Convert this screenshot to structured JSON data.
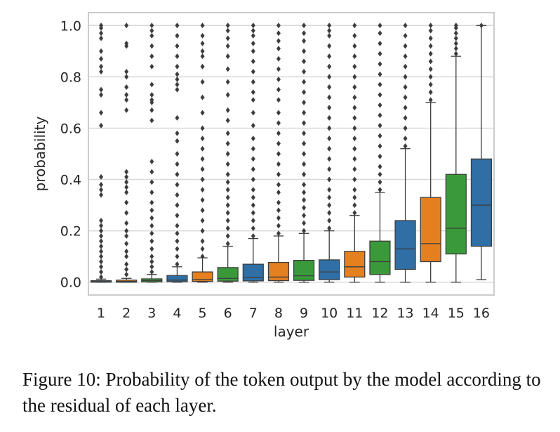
{
  "caption": "Figure 10: Probability of the token output by the model according to the residual of each layer.",
  "colors": {
    "blue": "#2f6fa6",
    "orange": "#e4801f",
    "green": "#3a9a3a",
    "grid": "#d9d9d9",
    "frame": "#cccccc",
    "line": "#3d3d3d",
    "outlier": "#3d3d3d"
  },
  "chart_data": {
    "type": "boxplot",
    "xlabel": "layer",
    "ylabel": "probability",
    "ylim": [
      -0.05,
      1.05
    ],
    "yticks": [
      0.0,
      0.2,
      0.4,
      0.6,
      0.8,
      1.0
    ],
    "ytick_labels": [
      "0.0",
      "0.2",
      "0.4",
      "0.6",
      "0.8",
      "1.0"
    ],
    "grid": true,
    "categories": [
      "1",
      "2",
      "3",
      "4",
      "5",
      "6",
      "7",
      "8",
      "9",
      "10",
      "11",
      "12",
      "13",
      "14",
      "15",
      "16"
    ],
    "series": [
      {
        "color": "blue",
        "min": 0.0,
        "q1": 0.0,
        "median": 0.002,
        "q3": 0.006,
        "max": 0.012,
        "outliers": [
          0.02,
          0.04,
          0.06,
          0.08,
          0.1,
          0.12,
          0.14,
          0.16,
          0.18,
          0.2,
          0.22,
          0.24,
          0.34,
          0.36,
          0.38,
          0.41,
          0.61,
          0.66,
          0.73,
          0.75,
          0.82,
          0.84,
          0.87,
          0.9,
          0.95,
          0.97,
          0.99,
          1.0
        ]
      },
      {
        "color": "orange",
        "min": 0.0,
        "q1": 0.0,
        "median": 0.003,
        "q3": 0.008,
        "max": 0.015,
        "outliers": [
          0.03,
          0.05,
          0.07,
          0.1,
          0.12,
          0.15,
          0.18,
          0.2,
          0.23,
          0.27,
          0.31,
          0.35,
          0.37,
          0.39,
          0.41,
          0.43,
          0.67,
          0.71,
          0.73,
          0.76,
          0.8,
          0.82,
          0.92,
          0.93,
          1.0
        ]
      },
      {
        "color": "green",
        "min": 0.0,
        "q1": 0.001,
        "median": 0.006,
        "q3": 0.013,
        "max": 0.03,
        "outliers": [
          0.04,
          0.06,
          0.08,
          0.1,
          0.13,
          0.16,
          0.19,
          0.22,
          0.25,
          0.28,
          0.31,
          0.35,
          0.39,
          0.43,
          0.47,
          0.63,
          0.67,
          0.7,
          0.71,
          0.73,
          0.77,
          0.84,
          0.88,
          0.92,
          0.96,
          0.98,
          1.0
        ]
      },
      {
        "color": "blue",
        "min": 0.0,
        "q1": 0.002,
        "median": 0.008,
        "q3": 0.026,
        "max": 0.06,
        "outliers": [
          0.07,
          0.1,
          0.13,
          0.16,
          0.19,
          0.22,
          0.26,
          0.3,
          0.34,
          0.38,
          0.42,
          0.46,
          0.5,
          0.55,
          0.58,
          0.64,
          0.75,
          0.77,
          0.79,
          0.81,
          0.84,
          0.88,
          0.92,
          0.96,
          1.0
        ]
      },
      {
        "color": "orange",
        "min": 0.0,
        "q1": 0.003,
        "median": 0.01,
        "q3": 0.04,
        "max": 0.095,
        "outliers": [
          0.1,
          0.13,
          0.16,
          0.2,
          0.24,
          0.28,
          0.32,
          0.36,
          0.4,
          0.44,
          0.48,
          0.52,
          0.56,
          0.6,
          0.66,
          0.72,
          0.78,
          0.84,
          0.88,
          0.9,
          0.93,
          0.96,
          1.0
        ]
      },
      {
        "color": "green",
        "min": 0.0,
        "q1": 0.004,
        "median": 0.015,
        "q3": 0.057,
        "max": 0.14,
        "outliers": [
          0.15,
          0.18,
          0.21,
          0.24,
          0.27,
          0.3,
          0.33,
          0.36,
          0.39,
          0.42,
          0.46,
          0.5,
          0.54,
          0.58,
          0.63,
          0.67,
          0.73,
          0.78,
          0.83,
          0.88,
          0.92,
          0.95,
          0.98,
          1.0
        ]
      },
      {
        "color": "blue",
        "min": 0.0,
        "q1": 0.005,
        "median": 0.018,
        "q3": 0.07,
        "max": 0.17,
        "outliers": [
          0.18,
          0.21,
          0.24,
          0.27,
          0.3,
          0.33,
          0.36,
          0.4,
          0.44,
          0.48,
          0.52,
          0.56,
          0.61,
          0.66,
          0.71,
          0.74,
          0.78,
          0.82,
          0.86,
          0.9,
          0.93,
          0.96,
          0.98,
          1.0
        ]
      },
      {
        "color": "orange",
        "min": 0.0,
        "q1": 0.006,
        "median": 0.02,
        "q3": 0.077,
        "max": 0.18,
        "outliers": [
          0.19,
          0.22,
          0.25,
          0.28,
          0.31,
          0.35,
          0.38,
          0.42,
          0.46,
          0.5,
          0.54,
          0.58,
          0.62,
          0.66,
          0.71,
          0.75,
          0.79,
          0.83,
          0.87,
          0.91,
          0.94,
          0.97,
          1.0
        ]
      },
      {
        "color": "green",
        "min": 0.0,
        "q1": 0.007,
        "median": 0.025,
        "q3": 0.085,
        "max": 0.19,
        "outliers": [
          0.2,
          0.23,
          0.26,
          0.29,
          0.32,
          0.35,
          0.38,
          0.42,
          0.46,
          0.5,
          0.54,
          0.58,
          0.62,
          0.66,
          0.7,
          0.74,
          0.78,
          0.82,
          0.86,
          0.9,
          0.94,
          0.97,
          1.0
        ]
      },
      {
        "color": "blue",
        "min": 0.0,
        "q1": 0.01,
        "median": 0.04,
        "q3": 0.087,
        "max": 0.2,
        "outliers": [
          0.21,
          0.24,
          0.27,
          0.3,
          0.33,
          0.36,
          0.4,
          0.44,
          0.48,
          0.52,
          0.56,
          0.6,
          0.64,
          0.68,
          0.72,
          0.76,
          0.8,
          0.84,
          0.88,
          0.92,
          0.96,
          0.98,
          1.0
        ]
      },
      {
        "color": "orange",
        "min": 0.0,
        "q1": 0.02,
        "median": 0.06,
        "q3": 0.12,
        "max": 0.26,
        "outliers": [
          0.27,
          0.3,
          0.33,
          0.36,
          0.4,
          0.44,
          0.48,
          0.52,
          0.56,
          0.6,
          0.64,
          0.68,
          0.72,
          0.76,
          0.8,
          0.84,
          0.88,
          0.92,
          0.96,
          1.0
        ]
      },
      {
        "color": "green",
        "min": 0.0,
        "q1": 0.03,
        "median": 0.08,
        "q3": 0.16,
        "max": 0.35,
        "outliers": [
          0.36,
          0.39,
          0.42,
          0.45,
          0.49,
          0.53,
          0.57,
          0.61,
          0.65,
          0.69,
          0.73,
          0.77,
          0.81,
          0.85,
          0.89,
          0.93,
          0.97,
          1.0
        ]
      },
      {
        "color": "blue",
        "min": 0.0,
        "q1": 0.05,
        "median": 0.13,
        "q3": 0.24,
        "max": 0.52,
        "outliers": [
          0.53,
          0.56,
          0.6,
          0.64,
          0.68,
          0.72,
          0.76,
          0.8,
          0.84,
          0.88,
          0.92,
          0.96,
          1.0
        ]
      },
      {
        "color": "orange",
        "min": 0.0,
        "q1": 0.08,
        "median": 0.15,
        "q3": 0.33,
        "max": 0.7,
        "outliers": [
          0.71,
          0.74,
          0.77,
          0.8,
          0.83,
          0.86,
          0.89,
          0.92,
          0.95,
          0.98,
          1.0
        ]
      },
      {
        "color": "green",
        "min": 0.0,
        "q1": 0.11,
        "median": 0.21,
        "q3": 0.42,
        "max": 0.88,
        "outliers": [
          0.89,
          0.91,
          0.93,
          0.95,
          0.97,
          0.99,
          1.0
        ]
      },
      {
        "color": "blue",
        "min": 0.01,
        "q1": 0.14,
        "median": 0.3,
        "q3": 0.48,
        "max": 1.0,
        "outliers": [
          1.0
        ]
      }
    ]
  }
}
